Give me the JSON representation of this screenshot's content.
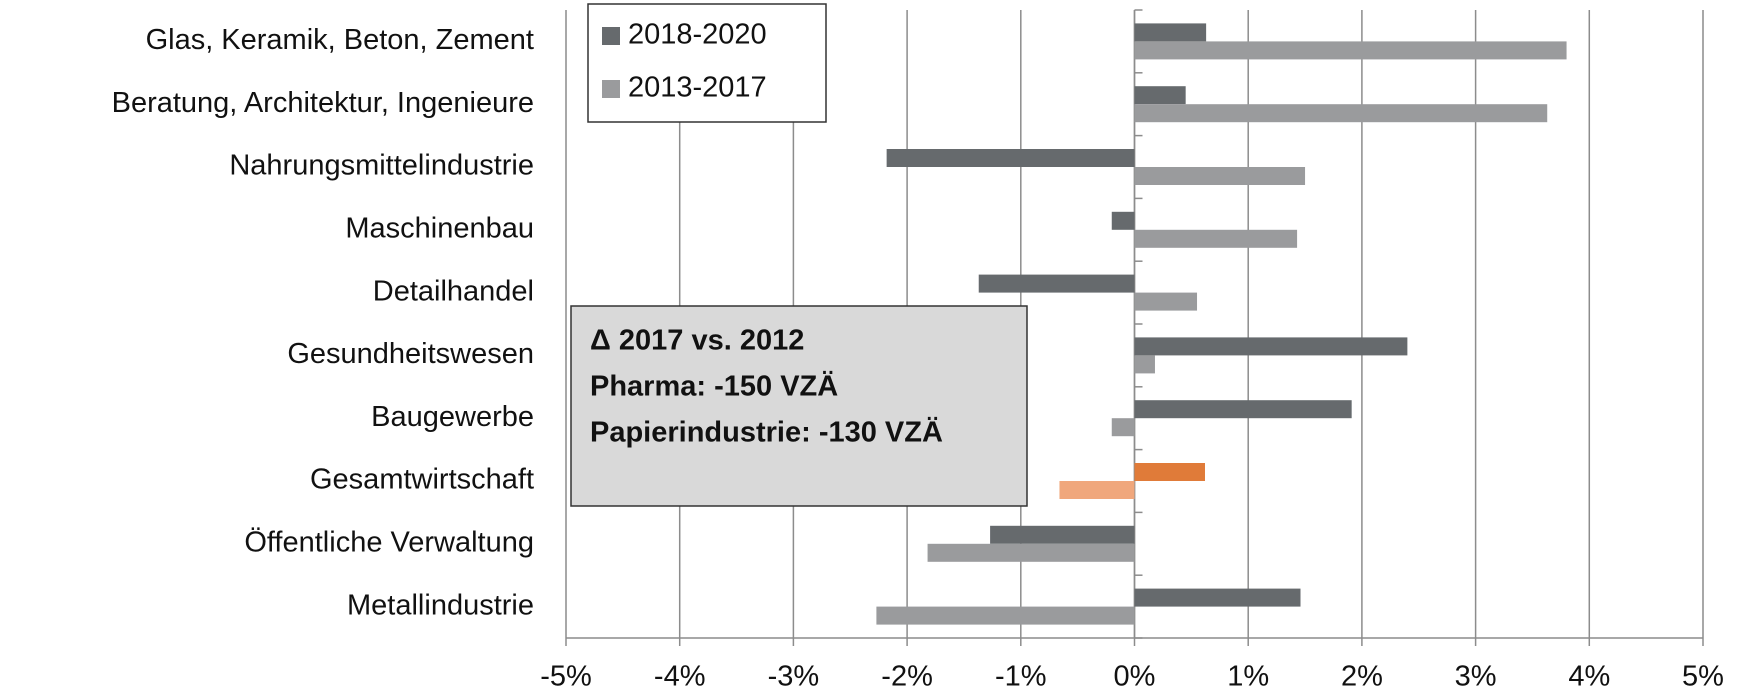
{
  "chart_data": {
    "type": "hbar",
    "categories": [
      "Glas, Keramik, Beton, Zement",
      "Beratung, Architektur, Ingenieure",
      "Nahrungsmittelindustrie",
      "Maschinenbau",
      "Detailhandel",
      "Gesundheitswesen",
      "Baugewerbe",
      "Gesamtwirtschaft",
      "Öffentliche Verwaltung",
      "Metallindustrie"
    ],
    "series": [
      {
        "name": "2018-2020",
        "color": "#666a6d",
        "colors": [
          "#666a6d",
          "#666a6d",
          "#666a6d",
          "#666a6d",
          "#666a6d",
          "#666a6d",
          "#666a6d",
          "#e07b39",
          "#666a6d",
          "#666a6d"
        ],
        "values": [
          0.63,
          0.45,
          -2.18,
          -0.2,
          -1.37,
          2.4,
          1.91,
          0.62,
          -1.27,
          1.46
        ]
      },
      {
        "name": "2013-2017",
        "color": "#9a9b9d",
        "colors": [
          "#9a9b9d",
          "#9a9b9d",
          "#9a9b9d",
          "#9a9b9d",
          "#9a9b9d",
          "#9a9b9d",
          "#9a9b9d",
          "#f0a77c",
          "#9a9b9d",
          "#9a9b9d"
        ],
        "values": [
          3.8,
          3.63,
          1.5,
          1.43,
          0.55,
          0.18,
          -0.2,
          -0.66,
          -1.82,
          -2.27
        ]
      }
    ],
    "xlim": [
      -5,
      5
    ],
    "xticks": [
      {
        "value": -5,
        "label": "-5%"
      },
      {
        "value": -4,
        "label": "-4%"
      },
      {
        "value": -3,
        "label": "-3%"
      },
      {
        "value": -2,
        "label": "-2%"
      },
      {
        "value": -1,
        "label": "-1%"
      },
      {
        "value": 0,
        "label": "0%"
      },
      {
        "value": 1,
        "label": "1%"
      },
      {
        "value": 2,
        "label": "2%"
      },
      {
        "value": 3,
        "label": "3%"
      },
      {
        "value": 4,
        "label": "4%"
      },
      {
        "value": 5,
        "label": "5%"
      }
    ],
    "grid": true,
    "legend": "upper left",
    "annotation": [
      "Δ 2017 vs. 2012",
      "Pharma: -150 VZÄ",
      "Papierindustrie: -130 VZÄ"
    ]
  }
}
